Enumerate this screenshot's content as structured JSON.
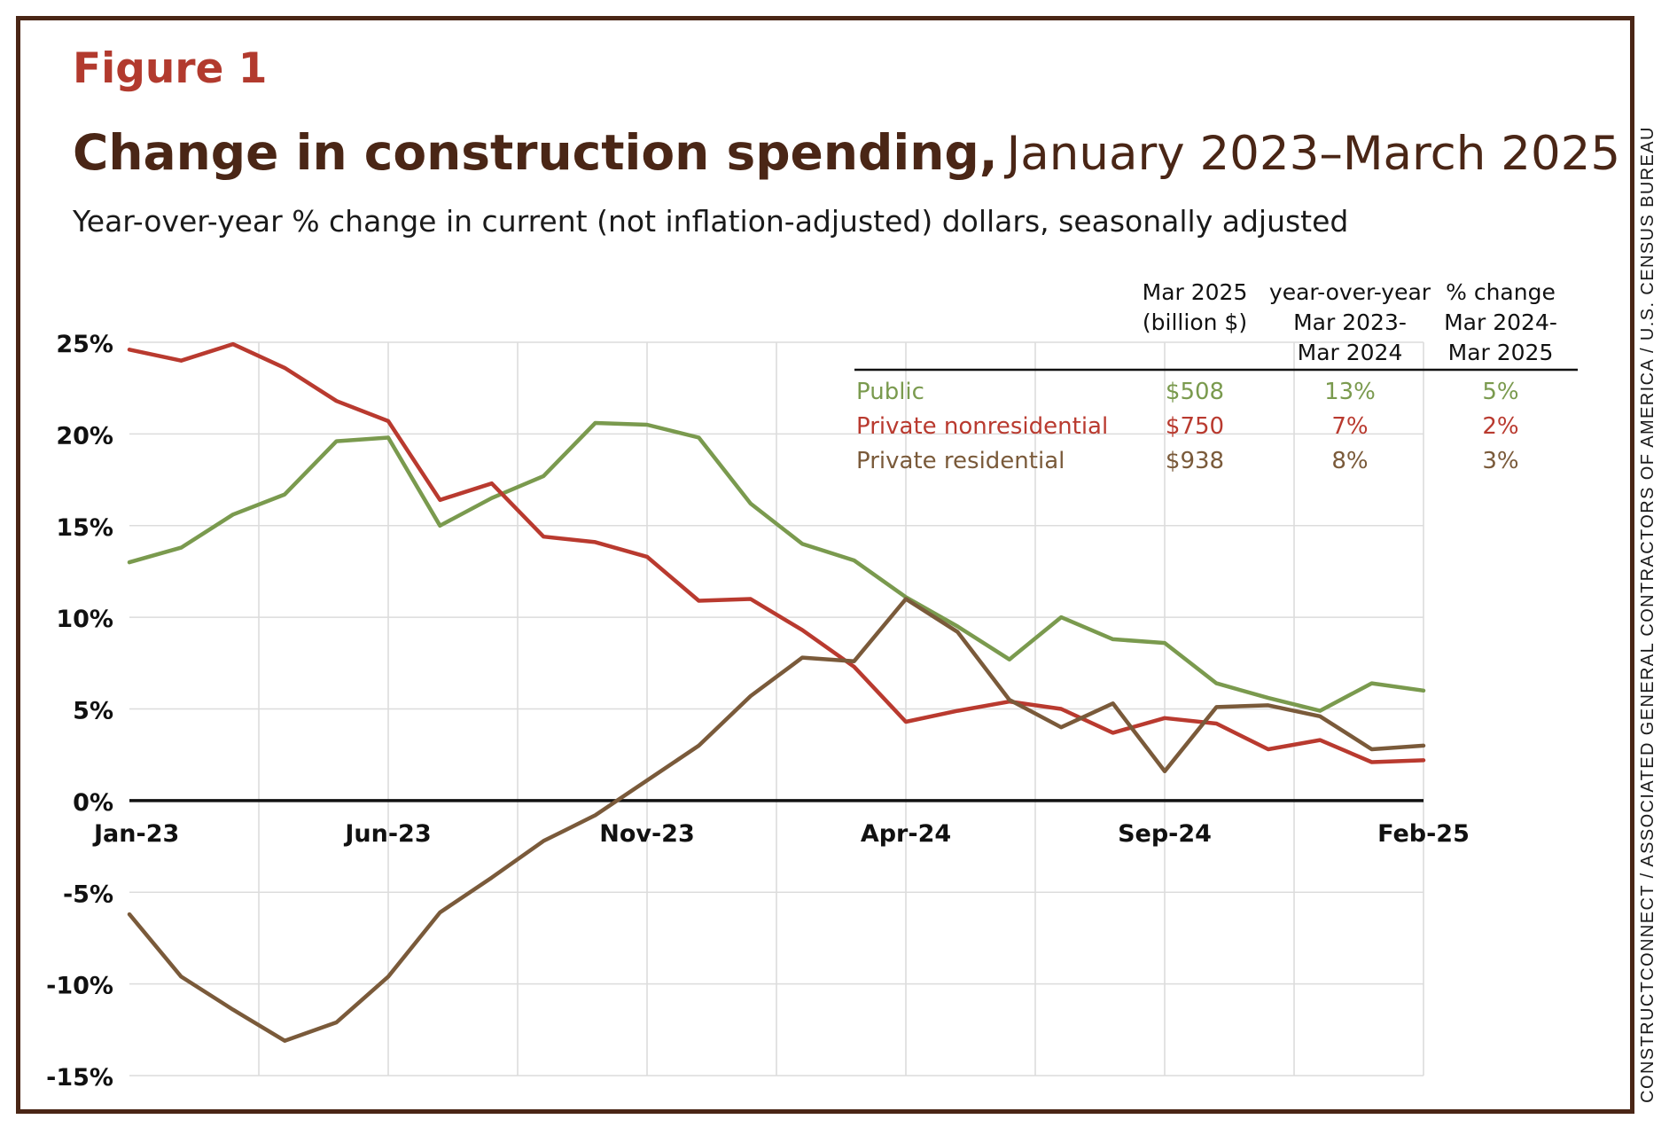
{
  "figure_label": "Figure 1",
  "title_bold": "Change in construction spending,",
  "title_light": "January 2023–March 2025",
  "subtitle": "Year-over-year % change in current (not inflation-adjusted) dollars, seasonally adjusted",
  "source": "CONSTRUCTCONNECT / ASSOCIATED GENERAL CONTRACTORS OF AMERICA / U.S. CENSUS BUREAU",
  "colors": {
    "public": "#7a9a4e",
    "private_nonresidential": "#b93a2f",
    "private_residential": "#7a5a3a",
    "title": "#4a2616",
    "figure_label": "#b23a2e"
  },
  "chart_data": {
    "type": "line",
    "title": "Change in construction spending, January 2023–March 2025",
    "ylabel": "",
    "xlabel": "",
    "ylim": [
      -15,
      25
    ],
    "y_ticks": [
      25,
      20,
      15,
      10,
      5,
      0,
      -5,
      -10,
      -15
    ],
    "y_tick_labels": [
      "25%",
      "20%",
      "15%",
      "10%",
      "5%",
      "0%",
      "-5%",
      "-10%",
      "-15%"
    ],
    "x": [
      "Jan-23",
      "Feb-23",
      "Mar-23",
      "Apr-23",
      "May-23",
      "Jun-23",
      "Jul-23",
      "Aug-23",
      "Sep-23",
      "Oct-23",
      "Nov-23",
      "Dec-23",
      "Jan-24",
      "Feb-24",
      "Mar-24",
      "Apr-24",
      "May-24",
      "Jun-24",
      "Jul-24",
      "Aug-24",
      "Sep-24",
      "Oct-24",
      "Nov-24",
      "Dec-24",
      "Jan-25",
      "Feb-25"
    ],
    "x_tick_labels": [
      "Jan-23",
      "Jun-23",
      "Nov-23",
      "Apr-24",
      "Sep-24",
      "Feb-25"
    ],
    "grid": true,
    "series": [
      {
        "name": "Public",
        "color": "#7a9a4e",
        "values": [
          13.0,
          13.8,
          15.6,
          16.7,
          19.6,
          19.8,
          15.0,
          16.5,
          17.7,
          20.6,
          20.5,
          19.8,
          16.2,
          14.0,
          13.1,
          11.1,
          9.5,
          7.7,
          10.0,
          8.8,
          8.6,
          6.4,
          5.6,
          4.9,
          6.4,
          6.0
        ]
      },
      {
        "name": "Private nonresidential",
        "color": "#b93a2f",
        "values": [
          24.6,
          24.0,
          24.9,
          23.6,
          21.8,
          20.7,
          16.4,
          17.3,
          14.4,
          14.1,
          13.3,
          10.9,
          11.0,
          9.3,
          7.3,
          4.3,
          4.9,
          5.4,
          5.0,
          3.7,
          4.5,
          4.2,
          2.8,
          3.3,
          2.1,
          2.2
        ]
      },
      {
        "name": "Private residential",
        "color": "#7a5a3a",
        "values": [
          -6.2,
          -9.6,
          -11.4,
          -13.1,
          -12.1,
          -9.6,
          -6.1,
          -4.2,
          -2.2,
          -0.8,
          1.1,
          3.0,
          5.7,
          7.8,
          7.6,
          11.0,
          9.2,
          5.5,
          4.0,
          5.3,
          1.6,
          5.1,
          5.2,
          4.6,
          2.8,
          3.0
        ]
      }
    ],
    "annotation_table": {
      "headers": [
        [
          "Mar 2025",
          "(billion $)"
        ],
        [
          "year-over-year",
          "Mar 2023-",
          "Mar 2024"
        ],
        [
          "% change",
          "Mar 2024-",
          "Mar 2025"
        ]
      ],
      "rows": [
        {
          "label": "Public",
          "mar2025": "$508",
          "yoy_2024": "13%",
          "yoy_2025": "5%"
        },
        {
          "label": "Private nonresidential",
          "mar2025": "$750",
          "yoy_2024": "7%",
          "yoy_2025": "2%"
        },
        {
          "label": "Private residential",
          "mar2025": "$938",
          "yoy_2024": "8%",
          "yoy_2025": "3%"
        }
      ]
    }
  }
}
